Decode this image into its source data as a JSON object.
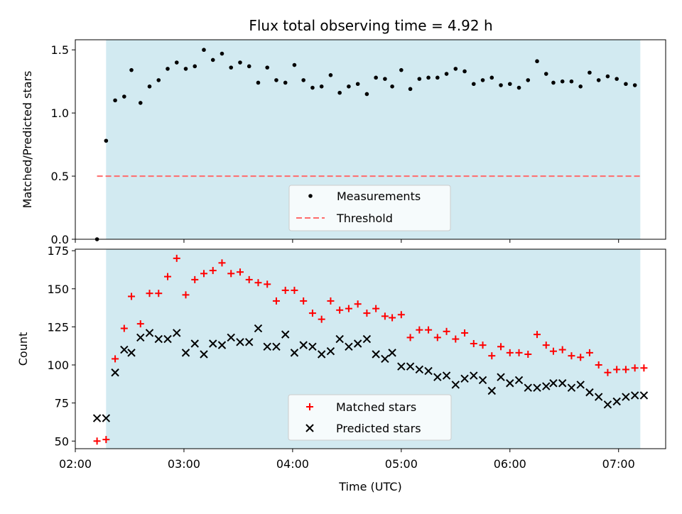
{
  "chart_data": [
    {
      "type": "scatter",
      "title": "Flux total observing time = 4.92 h",
      "xlabel": "",
      "ylabel": "Matched/Predicted stars",
      "xlim": [
        "02:00",
        "07:26"
      ],
      "ylim": [
        0,
        1.58
      ],
      "yticks": [
        0.0,
        0.5,
        1.0,
        1.5
      ],
      "ytick_labels": [
        "0.0",
        "0.5",
        "1.0",
        "1.5"
      ],
      "shaded_span": [
        "02:17",
        "07:12"
      ],
      "shade_color": "#add8e6",
      "legend": {
        "placement": "lower center",
        "entries": [
          "Measurements",
          "Threshold"
        ]
      },
      "series": [
        {
          "name": "Measurements",
          "marker": "dot",
          "color": "#000000",
          "x": [
            "02:12",
            "02:17",
            "02:22",
            "02:27",
            "02:31",
            "02:36",
            "02:41",
            "02:46",
            "02:51",
            "02:56",
            "03:01",
            "03:06",
            "03:11",
            "03:16",
            "03:21",
            "03:26",
            "03:31",
            "03:36",
            "03:41",
            "03:46",
            "03:51",
            "03:56",
            "04:01",
            "04:06",
            "04:11",
            "04:16",
            "04:21",
            "04:26",
            "04:31",
            "04:36",
            "04:41",
            "04:46",
            "04:51",
            "04:55",
            "05:00",
            "05:05",
            "05:10",
            "05:15",
            "05:20",
            "05:25",
            "05:30",
            "05:35",
            "05:40",
            "05:45",
            "05:50",
            "05:55",
            "06:00",
            "06:05",
            "06:10",
            "06:15",
            "06:20",
            "06:24",
            "06:29",
            "06:34",
            "06:39",
            "06:44",
            "06:49",
            "06:54",
            "06:59",
            "07:04",
            "07:09"
          ],
          "y": [
            0.0,
            0.78,
            1.1,
            1.13,
            1.34,
            1.08,
            1.21,
            1.26,
            1.35,
            1.4,
            1.35,
            1.37,
            1.5,
            1.42,
            1.47,
            1.36,
            1.4,
            1.37,
            1.24,
            1.36,
            1.26,
            1.24,
            1.38,
            1.26,
            1.2,
            1.21,
            1.3,
            1.16,
            1.21,
            1.23,
            1.15,
            1.28,
            1.27,
            1.21,
            1.34,
            1.19,
            1.27,
            1.28,
            1.28,
            1.31,
            1.35,
            1.33,
            1.23,
            1.26,
            1.28,
            1.22,
            1.23,
            1.2,
            1.26,
            1.41,
            1.31,
            1.24,
            1.25,
            1.25,
            1.21,
            1.32,
            1.26,
            1.29,
            1.27,
            1.23,
            1.22
          ]
        },
        {
          "name": "Threshold",
          "style": "dashed",
          "color": "#ff6b6b",
          "x": [
            "02:12",
            "07:12"
          ],
          "y": [
            0.5,
            0.5
          ]
        }
      ]
    },
    {
      "type": "scatter",
      "title": "",
      "xlabel": "Time (UTC)",
      "ylabel": "Count",
      "xlim": [
        "02:00",
        "07:26"
      ],
      "xticks": [
        "02:00",
        "03:00",
        "04:00",
        "05:00",
        "06:00",
        "07:00"
      ],
      "ylim": [
        45,
        176
      ],
      "yticks": [
        50,
        75,
        100,
        125,
        150,
        175
      ],
      "shaded_span": [
        "02:17",
        "07:12"
      ],
      "shade_color": "#add8e6",
      "legend": {
        "placement": "lower center",
        "entries": [
          "Matched stars",
          "Predicted stars"
        ]
      },
      "x": [
        "02:12",
        "02:17",
        "02:22",
        "02:27",
        "02:31",
        "02:36",
        "02:41",
        "02:46",
        "02:51",
        "02:56",
        "03:01",
        "03:06",
        "03:11",
        "03:16",
        "03:21",
        "03:26",
        "03:31",
        "03:36",
        "03:41",
        "03:46",
        "03:51",
        "03:56",
        "04:01",
        "04:06",
        "04:11",
        "04:16",
        "04:21",
        "04:26",
        "04:31",
        "04:36",
        "04:41",
        "04:46",
        "04:51",
        "04:55",
        "05:00",
        "05:05",
        "05:10",
        "05:15",
        "05:20",
        "05:25",
        "05:30",
        "05:35",
        "05:40",
        "05:45",
        "05:50",
        "05:55",
        "06:00",
        "06:05",
        "06:10",
        "06:15",
        "06:20",
        "06:24",
        "06:29",
        "06:34",
        "06:39",
        "06:44",
        "06:49",
        "06:54",
        "06:59",
        "07:04",
        "07:09",
        "07:14"
      ],
      "series": [
        {
          "name": "Matched stars",
          "marker": "plus",
          "color": "#ff0000",
          "values": [
            50,
            51,
            104,
            124,
            145,
            127,
            147,
            147,
            158,
            170,
            146,
            156,
            160,
            162,
            167,
            160,
            161,
            156,
            154,
            153,
            142,
            149,
            149,
            142,
            134,
            130,
            142,
            136,
            137,
            140,
            134,
            137,
            132,
            131,
            133,
            118,
            123,
            123,
            118,
            122,
            117,
            121,
            114,
            113,
            106,
            112,
            108,
            108,
            107,
            120,
            113,
            109,
            110,
            106,
            105,
            108,
            100,
            95,
            97,
            97,
            98,
            98
          ]
        },
        {
          "name": "Predicted stars",
          "marker": "x",
          "color": "#000000",
          "values": [
            65,
            65,
            95,
            110,
            108,
            118,
            121,
            117,
            117,
            121,
            108,
            114,
            107,
            114,
            113,
            118,
            115,
            115,
            124,
            112,
            112,
            120,
            108,
            113,
            112,
            107,
            109,
            117,
            112,
            114,
            117,
            107,
            104,
            108,
            99,
            99,
            97,
            96,
            92,
            93,
            87,
            91,
            93,
            90,
            83,
            92,
            88,
            90,
            85,
            85,
            86,
            88,
            88,
            85,
            87,
            82,
            79,
            74,
            76,
            79,
            80,
            80
          ]
        }
      ]
    }
  ]
}
